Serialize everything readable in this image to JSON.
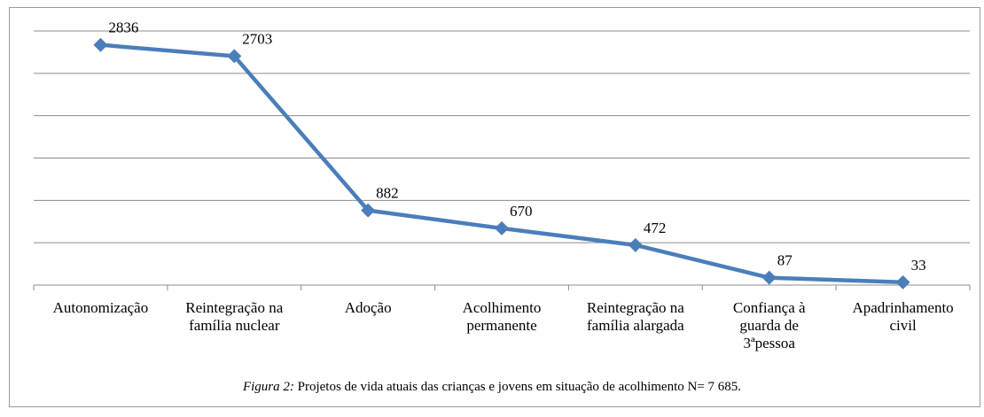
{
  "chart_data": {
    "type": "line",
    "categories": [
      "Autonomização",
      "Reintegração na família nuclear",
      "Adoção",
      "Acolhimento permanente",
      "Reintegração na família alargada",
      "Confiança à guarda de 3ªpessoa",
      "Apadrinhamento civil"
    ],
    "values": [
      2836,
      2703,
      882,
      670,
      472,
      87,
      33
    ],
    "color": "#4a7ebb",
    "ylim": [
      0,
      3000
    ],
    "yticks": [
      0,
      500,
      1000,
      1500,
      2000,
      2500,
      3000
    ],
    "grid": true,
    "caption_label": "Figura 2:",
    "caption_text": "Projetos de vida atuais das crianças e jovens em situação de acolhimento N= 7 685."
  }
}
